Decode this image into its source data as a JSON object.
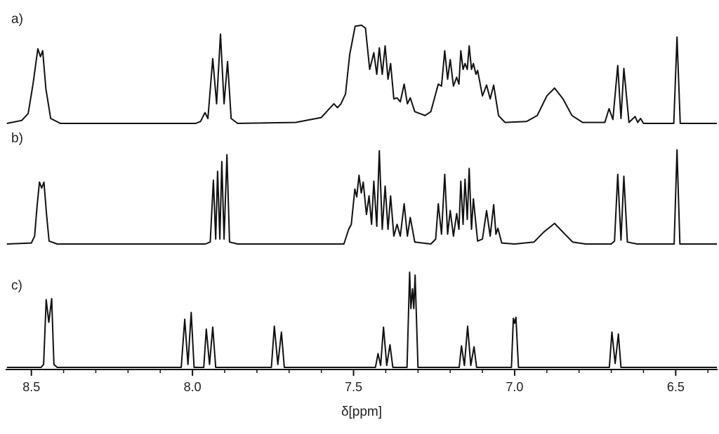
{
  "chart_data": {
    "type": "line",
    "xlabel": "δ[ppm]",
    "xlim": [
      8.58,
      6.37
    ],
    "xticks": [
      8.5,
      {
        "value": 8,
        "label": "8.0"
      },
      7.5,
      {
        "value": 7,
        "label": "7.0"
      },
      6.5
    ],
    "xminorticks": [
      8.4,
      8.3,
      8.2,
      8.1,
      7.9,
      7.8,
      7.7,
      7.6,
      7.4,
      7.3,
      7.2,
      7.1,
      6.9,
      6.8,
      6.7,
      6.6,
      6.4
    ],
    "ylim": [
      0,
      100
    ],
    "series": [
      {
        "name": "a)",
        "color": "#111111",
        "x": [
          8.576,
          8.53,
          8.51,
          8.495,
          8.48,
          8.472,
          8.465,
          8.455,
          8.44,
          8.41,
          7.99,
          7.975,
          7.961,
          7.952,
          7.937,
          7.925,
          7.913,
          7.902,
          7.891,
          7.88,
          7.86,
          7.68,
          7.6,
          7.561,
          7.55,
          7.539,
          7.525,
          7.512,
          7.495,
          7.475,
          7.463,
          7.45,
          7.437,
          7.428,
          7.42,
          7.411,
          7.402,
          7.393,
          7.385,
          7.375,
          7.365,
          7.355,
          7.343,
          7.333,
          7.324,
          7.31,
          7.278,
          7.26,
          7.237,
          7.227,
          7.217,
          7.208,
          7.2,
          7.19,
          7.18,
          7.173,
          7.167,
          7.16,
          7.154,
          7.147,
          7.141,
          7.134,
          7.128,
          7.12,
          7.115,
          7.1,
          7.087,
          7.076,
          7.065,
          7.05,
          7.03,
          6.963,
          6.93,
          6.9,
          6.876,
          6.85,
          6.822,
          6.789,
          6.72,
          6.707,
          6.695,
          6.68,
          6.67,
          6.661,
          6.645,
          6.626,
          6.618,
          6.609,
          6.6,
          6.506,
          6.496,
          6.486,
          6.372
        ],
        "values": [
          0,
          3,
          10,
          40,
          76,
          68,
          74,
          35,
          5,
          0,
          0,
          2,
          11,
          5,
          66,
          20,
          91,
          20,
          63,
          5,
          0,
          1,
          6,
          20,
          16,
          20,
          30,
          70,
          99,
          100,
          97,
          55,
          72,
          50,
          77,
          50,
          79,
          45,
          61,
          25,
          26,
          22,
          40,
          20,
          26,
          12,
          8,
          12,
          40,
          38,
          74,
          45,
          65,
          38,
          47,
          40,
          74,
          55,
          61,
          55,
          79,
          55,
          61,
          50,
          54,
          28,
          39,
          25,
          39,
          8,
          1,
          2,
          8,
          28,
          36,
          25,
          8,
          1,
          1,
          15,
          4,
          59,
          5,
          56,
          1,
          7,
          1,
          5,
          0,
          0,
          88,
          0,
          0
        ]
      },
      {
        "name": "b)",
        "color": "#111111",
        "x": [
          8.576,
          8.5,
          8.49,
          8.482,
          8.475,
          8.468,
          8.461,
          8.453,
          8.445,
          8.42,
          7.96,
          7.945,
          7.935,
          7.928,
          7.922,
          7.915,
          7.909,
          7.902,
          7.893,
          7.885,
          7.86,
          7.53,
          7.515,
          7.507,
          7.496,
          7.49,
          7.483,
          7.476,
          7.47,
          7.46,
          7.452,
          7.444,
          7.437,
          7.428,
          7.42,
          7.411,
          7.402,
          7.393,
          7.385,
          7.375,
          7.365,
          7.355,
          7.343,
          7.333,
          7.324,
          7.31,
          7.26,
          7.245,
          7.237,
          7.227,
          7.217,
          7.208,
          7.2,
          7.19,
          7.18,
          7.173,
          7.167,
          7.16,
          7.154,
          7.147,
          7.141,
          7.134,
          7.128,
          7.115,
          7.1,
          7.087,
          7.076,
          7.065,
          7.058,
          7.052,
          7.04,
          7.0,
          6.94,
          6.91,
          6.876,
          6.85,
          6.82,
          6.78,
          6.7,
          6.69,
          6.68,
          6.67,
          6.661,
          6.65,
          6.62,
          6.505,
          6.496,
          6.487,
          6.372
        ],
        "values": [
          0,
          1,
          8,
          40,
          63,
          57,
          63,
          30,
          3,
          0,
          0,
          2,
          65,
          5,
          74,
          5,
          84,
          5,
          91,
          2,
          0,
          0,
          15,
          20,
          56,
          48,
          70,
          52,
          63,
          30,
          49,
          20,
          64,
          18,
          95,
          15,
          59,
          15,
          49,
          8,
          20,
          8,
          41,
          8,
          27,
          2,
          0,
          5,
          41,
          10,
          71,
          10,
          34,
          8,
          31,
          15,
          64,
          20,
          66,
          25,
          77,
          15,
          46,
          3,
          5,
          34,
          8,
          40,
          10,
          16,
          1,
          0,
          2,
          12,
          21,
          12,
          2,
          0,
          0,
          3,
          71,
          4,
          69,
          2,
          0,
          0,
          96,
          0,
          0
        ]
      },
      {
        "name": "c)",
        "color": "#111111",
        "x": [
          8.576,
          8.47,
          8.462,
          8.454,
          8.446,
          8.437,
          8.43,
          8.42,
          8.035,
          8.024,
          8.014,
          8.004,
          7.995,
          7.965,
          7.957,
          7.947,
          7.937,
          7.928,
          7.755,
          7.746,
          7.735,
          7.724,
          7.715,
          7.432,
          7.424,
          7.416,
          7.407,
          7.397,
          7.387,
          7.378,
          7.334,
          7.326,
          7.322,
          7.317,
          7.313,
          7.309,
          7.3,
          7.172,
          7.165,
          7.156,
          7.146,
          7.136,
          7.126,
          7.118,
          7.01,
          7.004,
          7.0,
          6.996,
          6.988,
          6.706,
          6.698,
          6.688,
          6.678,
          6.67,
          6.372
        ],
        "values": [
          0,
          0,
          3,
          69,
          46,
          70,
          3,
          0,
          0,
          49,
          3,
          56,
          0,
          0,
          39,
          3,
          41,
          0,
          0,
          42,
          3,
          36,
          0,
          0,
          14,
          2,
          41,
          2,
          23,
          0,
          0,
          97,
          60,
          80,
          60,
          94,
          0,
          0,
          22,
          2,
          42,
          2,
          21,
          0,
          0,
          50,
          45,
          51,
          0,
          0,
          36,
          4,
          34,
          0,
          0
        ]
      }
    ]
  }
}
